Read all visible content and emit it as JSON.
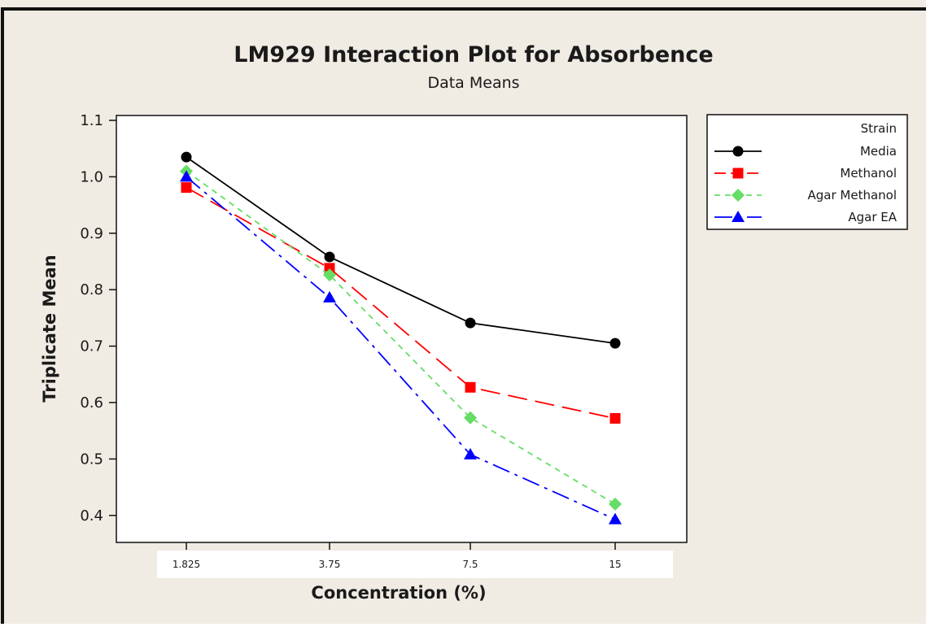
{
  "chart_data": {
    "type": "line",
    "title": "LM929 Interaction Plot for Absorbence",
    "subtitle": "Data Means",
    "xlabel": "Concentration (%)",
    "ylabel": "Triplicate Mean",
    "categories": [
      "1.825",
      "3.75",
      "7.5",
      "15"
    ],
    "ylim": [
      0.37,
      1.1
    ],
    "yticks": [
      "1.1",
      "1.0",
      "0.9",
      "0.8",
      "0.7",
      "0.6",
      "0.5",
      "0.4"
    ],
    "legend_title": "Strain",
    "legend_position": "right",
    "grid": false,
    "series": [
      {
        "name": "Media",
        "values": [
          1.035,
          0.858,
          0.741,
          0.705
        ],
        "color": "#000000",
        "marker": "circle",
        "dash": "solid"
      },
      {
        "name": "Methanol",
        "values": [
          0.981,
          0.838,
          0.627,
          0.572
        ],
        "color": "#ff0000",
        "marker": "square",
        "dash": "long-dash"
      },
      {
        "name": "Agar Methanol",
        "values": [
          1.01,
          0.826,
          0.573,
          0.42
        ],
        "color": "#66dd66",
        "marker": "diamond",
        "dash": "short-dash"
      },
      {
        "name": "Agar EA",
        "values": [
          1.0,
          0.786,
          0.508,
          0.393
        ],
        "color": "#0000ff",
        "marker": "triangle",
        "dash": "dash-dot"
      }
    ]
  },
  "colors": {
    "background": "#f0ebe3",
    "plot_area": "#ffffff",
    "frame": "#111111"
  }
}
